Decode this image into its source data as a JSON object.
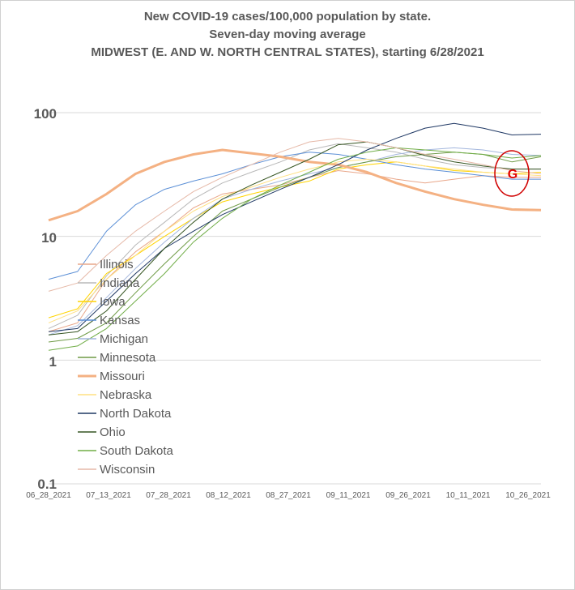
{
  "chart_data": {
    "type": "line",
    "title_lines": [
      "New COVID-19 cases/100,000 population by state.",
      "Seven-day moving average",
      "MIDWEST (E. AND W. NORTH CENTRAL STATES), starting 6/28/2021"
    ],
    "y_scale": "log",
    "ylim": [
      0.1,
      100
    ],
    "y_ticks": [
      "100",
      "10",
      "1",
      "0.1"
    ],
    "x_ticks": [
      "06_28_2021",
      "07_13_2021",
      "07_28_2021",
      "08_12_2021",
      "08_27_2021",
      "09_11_2021",
      "09_26_2021",
      "10_11_2021",
      "10_26_2021"
    ],
    "grid": "horizontal",
    "legend_position": "left",
    "annotation": {
      "text": "G",
      "color": "#e00000"
    },
    "x": [
      "06_28_2021",
      "07_05_2021",
      "07_13_2021",
      "07_20_2021",
      "07_28_2021",
      "08_04_2021",
      "08_12_2021",
      "08_19_2021",
      "08_27_2021",
      "09_03_2021",
      "09_11_2021",
      "09_18_2021",
      "09_26_2021",
      "10_03_2021",
      "10_11_2021",
      "10_18_2021",
      "10_26_2021",
      "10_30_2021"
    ],
    "series": [
      {
        "name": "Illinois",
        "color": "#e9a78a",
        "width": 1,
        "values": [
          1.7,
          2.0,
          4.5,
          7.5,
          11,
          17,
          22,
          24,
          26,
          30,
          34,
          32,
          29,
          27,
          29,
          31,
          30,
          30
        ]
      },
      {
        "name": "Indiana",
        "color": "#b8b8b8",
        "width": 1,
        "values": [
          1.8,
          2.3,
          4.8,
          8.5,
          13,
          20,
          27,
          33,
          40,
          50,
          56,
          52,
          48,
          42,
          38,
          36,
          35,
          35
        ]
      },
      {
        "name": "Iowa",
        "color": "#ffd400",
        "width": 1,
        "values": [
          2.2,
          2.6,
          5.0,
          7.0,
          10,
          14,
          19,
          22,
          25,
          28,
          35,
          38,
          40,
          37,
          34,
          33,
          32,
          33
        ]
      },
      {
        "name": "Kansas",
        "color": "#5b8fd6",
        "width": 1,
        "values": [
          4.5,
          5.2,
          11,
          18,
          24,
          28,
          32,
          38,
          44,
          48,
          46,
          42,
          38,
          35,
          33,
          31,
          29,
          29
        ]
      },
      {
        "name": "Michigan",
        "color": "#a3b6dd",
        "width": 1,
        "values": [
          1.6,
          1.9,
          3.2,
          5.5,
          9,
          14,
          20,
          24,
          28,
          32,
          36,
          40,
          46,
          50,
          52,
          50,
          46,
          45
        ]
      },
      {
        "name": "Minnesota",
        "color": "#6e9a45",
        "width": 1,
        "values": [
          1.4,
          1.5,
          2.0,
          3.5,
          6,
          10,
          16,
          20,
          25,
          30,
          36,
          40,
          44,
          46,
          48,
          46,
          40,
          44
        ]
      },
      {
        "name": "Missouri",
        "color": "#f4b183",
        "width": 3,
        "values": [
          13.5,
          16,
          22,
          32,
          40,
          46,
          50,
          47,
          44,
          40,
          38,
          33,
          27,
          23,
          20,
          18,
          16.5,
          16.3
        ]
      },
      {
        "name": "Nebraska",
        "color": "#ffe082",
        "width": 1,
        "values": [
          2.0,
          2.5,
          4.5,
          7.0,
          11,
          16,
          21,
          25,
          30,
          35,
          40,
          42,
          40,
          37,
          35,
          33,
          32,
          31
        ]
      },
      {
        "name": "North Dakota",
        "color": "#1f3864",
        "width": 1,
        "values": [
          1.7,
          1.8,
          3.0,
          5.0,
          8,
          11,
          15,
          19,
          24,
          30,
          38,
          50,
          62,
          75,
          82,
          75,
          66,
          67
        ]
      },
      {
        "name": "Ohio",
        "color": "#375623",
        "width": 1,
        "values": [
          1.6,
          1.7,
          2.5,
          4.5,
          8,
          13,
          20,
          26,
          33,
          42,
          55,
          58,
          52,
          45,
          40,
          37,
          35,
          35
        ]
      },
      {
        "name": "South Dakota",
        "color": "#70ad47",
        "width": 1,
        "values": [
          1.2,
          1.3,
          1.8,
          3.0,
          5,
          9,
          14,
          20,
          26,
          33,
          42,
          48,
          52,
          50,
          48,
          46,
          43,
          45
        ]
      },
      {
        "name": "Wisconsin",
        "color": "#e6b9a8",
        "width": 1,
        "values": [
          3.6,
          4.2,
          7.0,
          11,
          16,
          23,
          30,
          38,
          48,
          58,
          62,
          58,
          52,
          46,
          42,
          38,
          34,
          32
        ]
      }
    ]
  }
}
